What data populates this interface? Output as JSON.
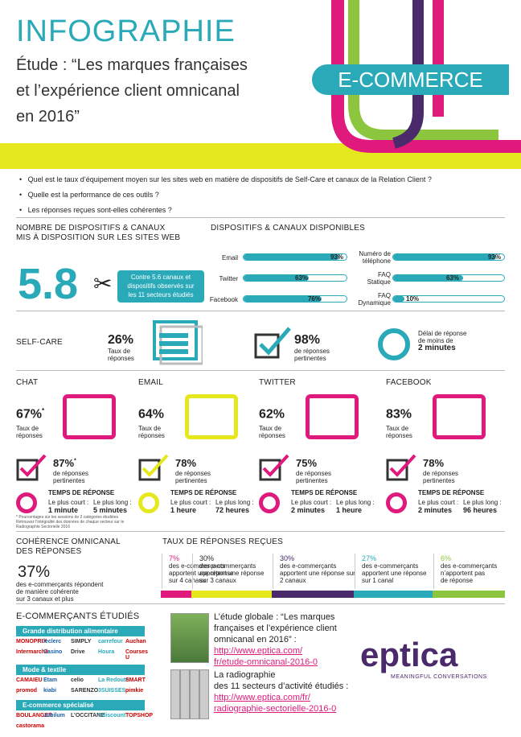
{
  "header": {
    "title": "INFOGRAPHIE",
    "study_line1": "Étude : “Les marques françaises",
    "study_line2": "et l’expérience client omnicanal",
    "study_line3": "en 2016”",
    "badge": "E-COMMERCE"
  },
  "questions": [
    "Quel est le taux d’équipement moyen sur les sites web en matière de dispositifs de Self-Care et canaux de la Relation Client ?",
    "Quelle est la performance de ces outils ?",
    "Les réponses reçues sont-elles cohérentes ?"
  ],
  "devices": {
    "title_line1": "NOMBRE DE DISPOSITIFS & CANAUX",
    "title_line2": "MIS À DISPOSITION SUR LES SITES WEB",
    "value": "5.8",
    "note_line1": "Contre 5.6 canaux et",
    "note_line2": "dispositifs observés sur",
    "note_line3": "les 11 secteurs étudiés"
  },
  "channels": {
    "title": "DISPOSITIFS & CANAUX DISPONIBLES",
    "left": [
      {
        "label": "Email",
        "value": 93,
        "text": "93%"
      },
      {
        "label": "Twitter",
        "value": 63,
        "text": "63%"
      },
      {
        "label": "Facebook",
        "value": 76,
        "text": "76%"
      }
    ],
    "right": [
      {
        "label_line1": "Numéro de",
        "label_line2": "téléphone",
        "value": 93,
        "text": "93%"
      },
      {
        "label_line1": "FAQ",
        "label_line2": "Statique",
        "value": 63,
        "text": "63%"
      },
      {
        "label_line1": "FAQ",
        "label_line2": "Dynamique",
        "value": 10,
        "text": "10%"
      }
    ]
  },
  "selfcare": {
    "title": "SELF-CARE",
    "rate": "26%",
    "rate_label_line1": "Taux de",
    "rate_label_line2": "réponses",
    "relevant": "98%",
    "relevant_label_line1": "de réponses",
    "relevant_label_line2": "pertinentes",
    "delay_line1": "Délai de réponse",
    "delay_line2": "de moins de",
    "delay_value": "2 minutes"
  },
  "channel_blocks": [
    {
      "name": "CHAT",
      "rate": "67%",
      "rate_star": "*",
      "rate_label_line1": "Taux de",
      "rate_label_line2": "réponses",
      "relevant": "87%",
      "relevant_star": "*",
      "relevant_line1": "de réponses",
      "relevant_line2": "pertinentes",
      "time_title": "TEMPS DE RÉPONSE",
      "short_label": "Le plus court :",
      "short": "1 minute",
      "long_label": "Le plus long :",
      "long": "5 minutes"
    },
    {
      "name": "EMAIL",
      "rate": "64%",
      "rate_star": "",
      "rate_label_line1": "Taux de",
      "rate_label_line2": "réponses",
      "relevant": "78%",
      "relevant_star": "",
      "relevant_line1": "de réponses",
      "relevant_line2": "pertinentes",
      "time_title": "TEMPS DE RÉPONSE",
      "short_label": "Le plus court :",
      "short": "1 heure",
      "long_label": "Le plus long :",
      "long": "72 heures"
    },
    {
      "name": "TWITTER",
      "rate": "62%",
      "rate_star": "",
      "rate_label_line1": "Taux de",
      "rate_label_line2": "réponses",
      "relevant": "75%",
      "relevant_star": "",
      "relevant_line1": "de réponses",
      "relevant_line2": "pertinentes",
      "time_title": "TEMPS DE RÉPONSE",
      "short_label": "Le plus court :",
      "short": "2 minutes",
      "long_label": "Le plus long :",
      "long": "1 heure"
    },
    {
      "name": "FACEBOOK",
      "rate": "83%",
      "rate_star": "",
      "rate_label_line1": "Taux de",
      "rate_label_line2": "réponses",
      "relevant": "78%",
      "relevant_star": "",
      "relevant_line1": "de réponses",
      "relevant_line2": "pertinentes",
      "time_title": "TEMPS DE RÉPONSE",
      "short_label": "Le plus court :",
      "short": "2 minutes",
      "long_label": "Le plus long :",
      "long": "96 heures"
    }
  ],
  "footnote_line1": "* Pourcentages sur les sessions de 2 catégories étudiées",
  "footnote_line2": "Retrouvez l’intégralité des données de chaque secteur sur le",
  "footnote_line3": "Radiographie Sectorielle 2016",
  "coherence": {
    "title_line1": "COHÉRENCE OMNICANAL",
    "title_line2": "DES RÉPONSES",
    "value": "37%",
    "desc_line1": "des e-commerçants répondent",
    "desc_line2": "de manière cohérente",
    "desc_line3": "sur 3 canaux et plus"
  },
  "rates": {
    "title": "TAUX DE RÉPONSES REÇUES",
    "segments": [
      {
        "pct": "7%",
        "l1": "des e-commerçants",
        "l2": "apportent une réponse",
        "l3": "sur 4 canaux",
        "color": "#e0197d",
        "share": 7
      },
      {
        "pct": "30%",
        "l1": "des e-commerçants",
        "l2": "apportent une réponse",
        "l3": "sur 3 canaux",
        "color": "#e6e81e",
        "share": 30
      },
      {
        "pct": "30%",
        "l1": "des e-commerçants",
        "l2": "apportent une réponse sur",
        "l3": "2 canaux",
        "color": "#4a2a6a",
        "share": 30
      },
      {
        "pct": "27%",
        "l1": "des e-commerçants",
        "l2": "apportent une réponse",
        "l3": "sur 1 canal",
        "color": "#2aa9b9",
        "share": 27
      },
      {
        "pct": "6%",
        "l1": "des e-commerçants",
        "l2": "n’apportent pas",
        "l3": "de réponse",
        "color": "#8cc63f",
        "share": 6
      }
    ]
  },
  "merchants": {
    "title": "E-COMMERÇANTS ÉTUDIÉS",
    "cat1": "Grande distribution alimentaire",
    "cat1_logos": [
      "MONOPRIX",
      "leclerc",
      "SIMPLY",
      "carrefour",
      "Auchan",
      "Intermarché",
      "Casino",
      "Drive",
      "Houra",
      "Courses U"
    ],
    "cat2": "Mode & textile",
    "cat2_logos": [
      "CAMAIEU",
      "Etam",
      "celio",
      "La Redoute",
      "SMART",
      "promod",
      "kiabi",
      "SARENZO",
      "3SUISSES",
      "pimkie"
    ],
    "cat3": "E-commerce spécialisé",
    "cat3_logos": [
      "BOULANGER",
      "Jubilum",
      "L’OCCITANE",
      "Cdiscount",
      "TOPSHOP",
      "castorama"
    ]
  },
  "study": {
    "intro_line1": "L’étude globale : “Les marques",
    "intro_line2": "françaises et l’expérience client",
    "intro_line3": "omnicanal en 2016” :",
    "link1_line1": "http://www.eptica.com/",
    "link1_line2": "fr/etude-omnicanal-2016-0",
    "radio_line1": "La radiographie",
    "radio_line2": "des 11 secteurs d’activité étudiés :",
    "link2_line1": "http://www.eptica.com/fr/",
    "link2_line2": "radiographie-sectorielle-2016-0"
  },
  "brand": {
    "name": "eptica",
    "tagline": "MEANINGFUL CONVERSATIONS"
  },
  "colors": {
    "accent": "#2aa9b9",
    "magenta": "#e0197d",
    "yellow": "#e6e81e",
    "purple": "#4a2a6a",
    "green": "#8cc63f"
  }
}
